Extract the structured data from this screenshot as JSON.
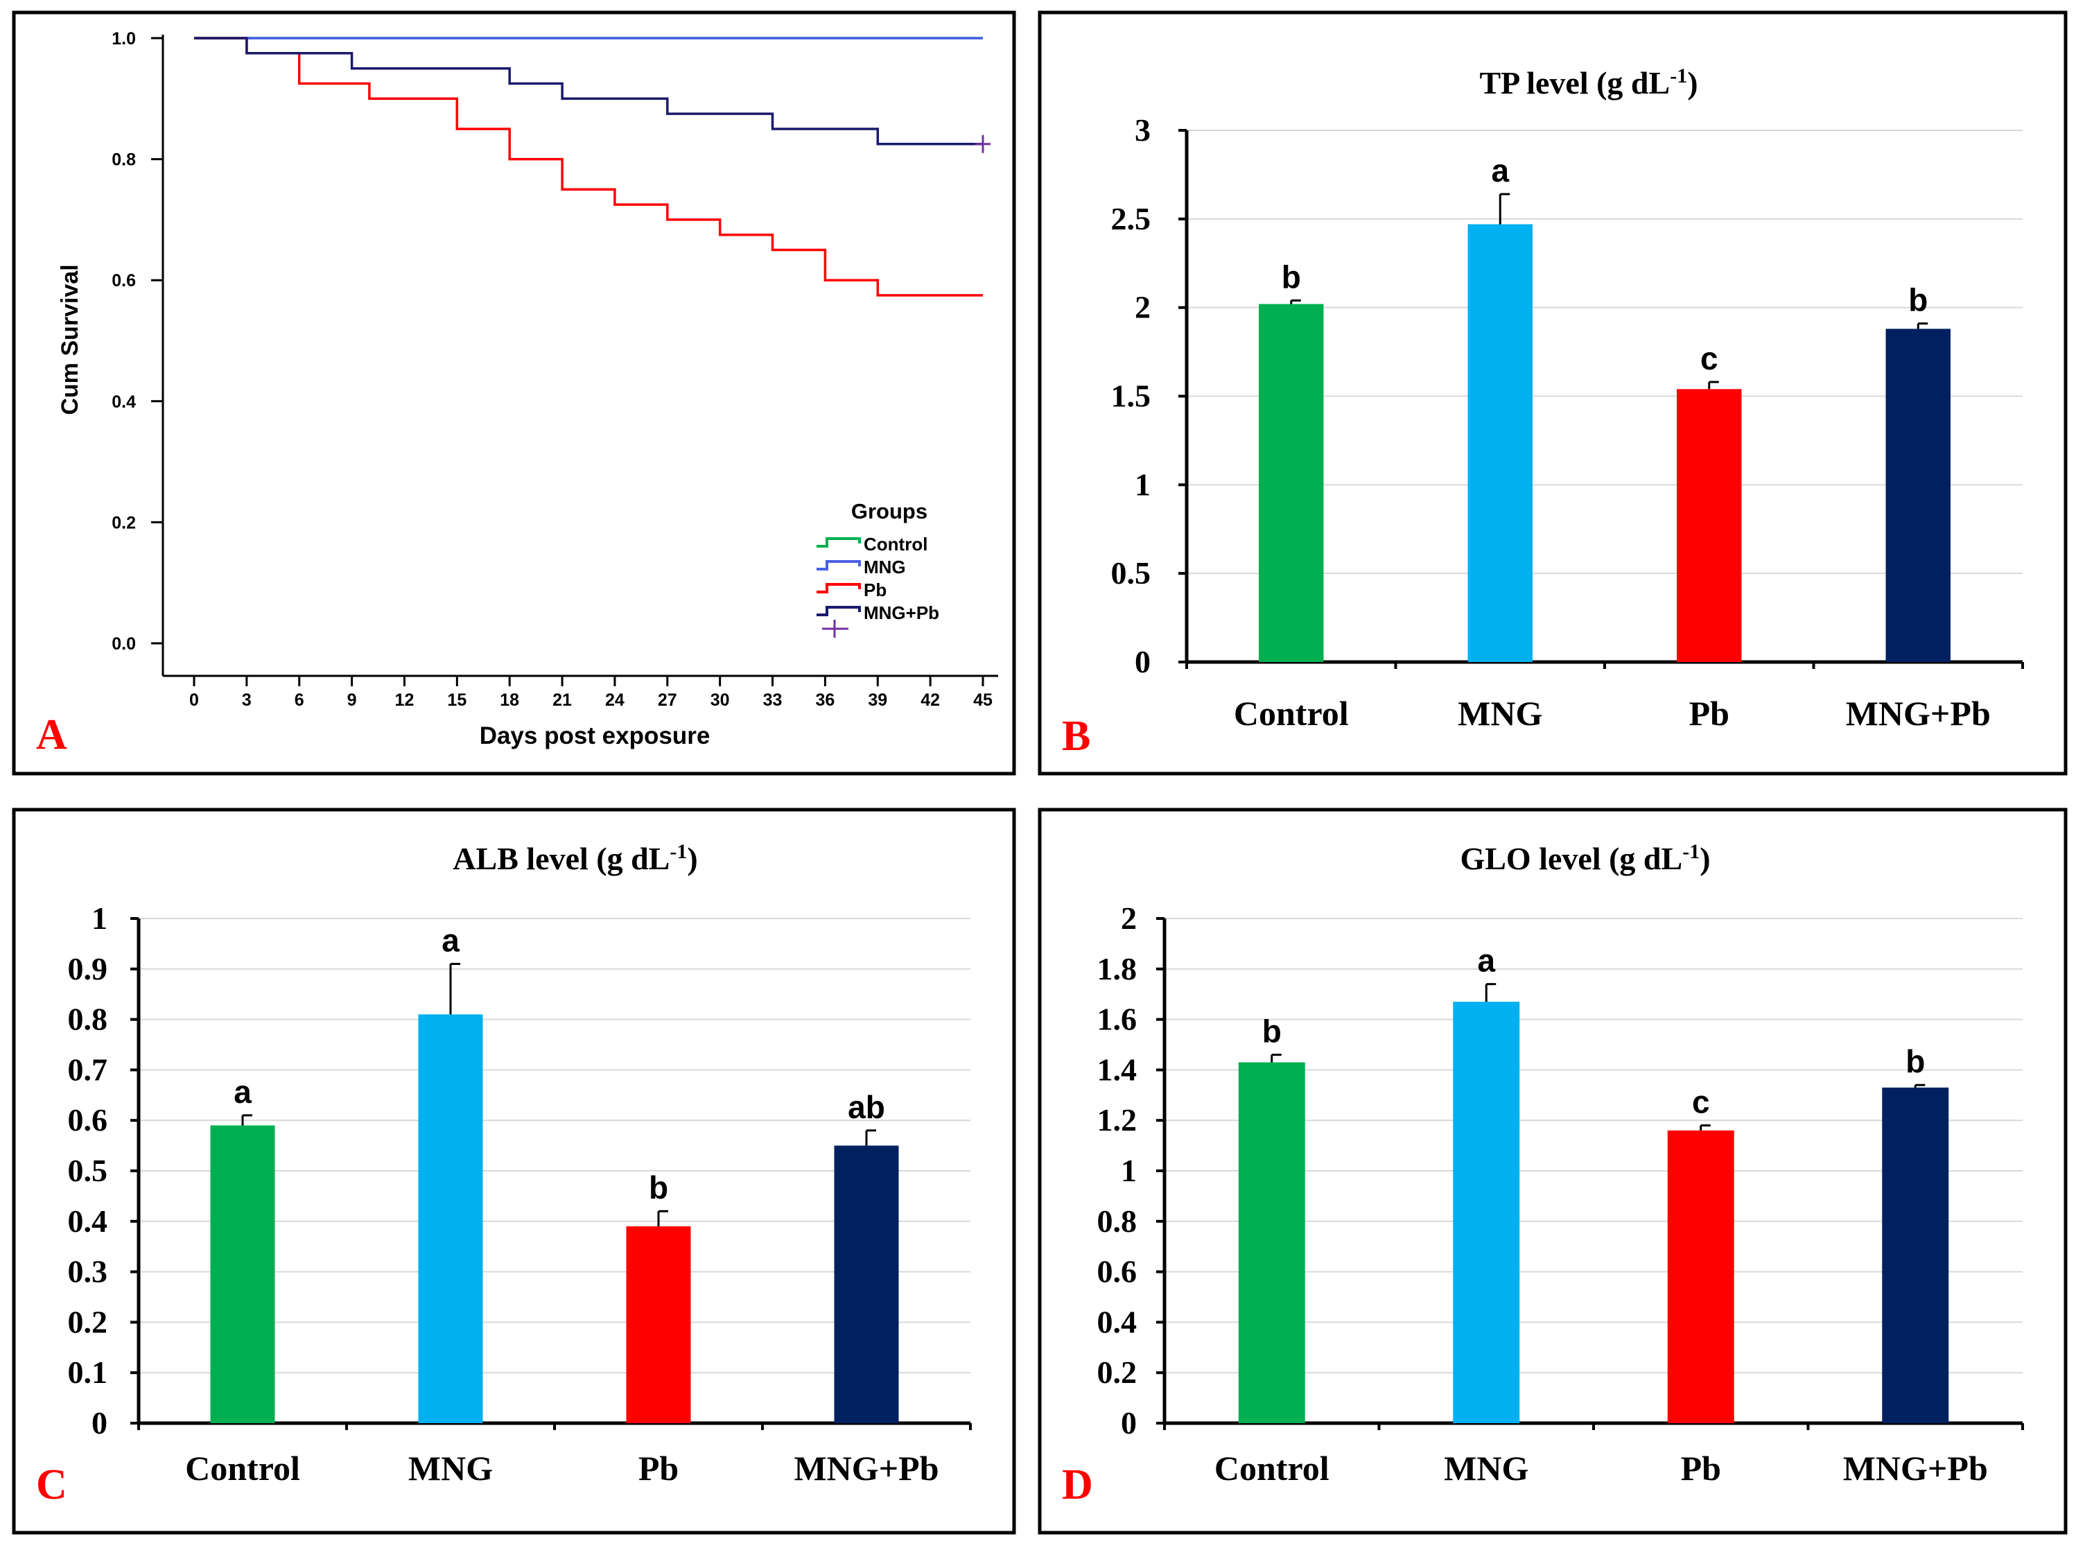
{
  "figure": {
    "colors": {
      "Control": "#00b050",
      "MNG": "#00b0f0",
      "Pb": "#ff0000",
      "MNG+Pb": "#002060",
      "frame": "#000000",
      "grid": "#d9d9d9",
      "panel_letter": "#ff0000"
    }
  },
  "chart_data": [
    {
      "panel": "A",
      "type": "line",
      "title": "",
      "xlabel": "Days post exposure",
      "ylabel": "Cum Survival",
      "xlim": [
        0,
        45
      ],
      "ylim": [
        0.0,
        1.0
      ],
      "xticks": [
        "0",
        "3",
        "6",
        "9",
        "12",
        "15",
        "18",
        "21",
        "24",
        "27",
        "30",
        "33",
        "36",
        "39",
        "42",
        "45"
      ],
      "yticks": [
        "0.0",
        "0.2",
        "0.4",
        "0.6",
        "0.8",
        "1.0"
      ],
      "legend_title": "Groups",
      "legend_position": "bottom-right",
      "legend": [
        "Control",
        "MNG",
        "Pb",
        "MNG+Pb"
      ],
      "series": [
        {
          "name": "Control",
          "color": "#00b050",
          "points": [
            [
              0,
              1.0
            ],
            [
              45,
              1.0
            ]
          ]
        },
        {
          "name": "MNG",
          "color": "#4a60e8",
          "points": [
            [
              0,
              1.0
            ],
            [
              45,
              1.0
            ]
          ]
        },
        {
          "name": "Pb",
          "color": "#ff0000",
          "points": [
            [
              0,
              1.0
            ],
            [
              3,
              1.0
            ],
            [
              3,
              0.975
            ],
            [
              6,
              0.975
            ],
            [
              6,
              0.925
            ],
            [
              10,
              0.925
            ],
            [
              10,
              0.9
            ],
            [
              12,
              0.9
            ],
            [
              12,
              0.9
            ],
            [
              15,
              0.9
            ],
            [
              15,
              0.85
            ],
            [
              18,
              0.85
            ],
            [
              18,
              0.8
            ],
            [
              21,
              0.8
            ],
            [
              21,
              0.75
            ],
            [
              24,
              0.75
            ],
            [
              24,
              0.725
            ],
            [
              27,
              0.725
            ],
            [
              27,
              0.7
            ],
            [
              30,
              0.7
            ],
            [
              30,
              0.675
            ],
            [
              33,
              0.675
            ],
            [
              33,
              0.65
            ],
            [
              36,
              0.65
            ],
            [
              36,
              0.6
            ],
            [
              39,
              0.6
            ],
            [
              39,
              0.575
            ],
            [
              45,
              0.575
            ]
          ]
        },
        {
          "name": "MNG+Pb",
          "color": "#1a1a6e",
          "points": [
            [
              0,
              1.0
            ],
            [
              3,
              1.0
            ],
            [
              3,
              0.975
            ],
            [
              9,
              0.975
            ],
            [
              9,
              0.95
            ],
            [
              18,
              0.95
            ],
            [
              18,
              0.925
            ],
            [
              21,
              0.925
            ],
            [
              21,
              0.9
            ],
            [
              27,
              0.9
            ],
            [
              27,
              0.875
            ],
            [
              33,
              0.875
            ],
            [
              33,
              0.85
            ],
            [
              39,
              0.85
            ],
            [
              39,
              0.825
            ],
            [
              45,
              0.825
            ]
          ]
        }
      ],
      "censor_marker": {
        "series": "MNG+Pb",
        "x": 45,
        "y": 0.825,
        "color": "#7030a0"
      }
    },
    {
      "panel": "B",
      "type": "bar",
      "title": "TP level  (g dL",
      "title_sup": "-1",
      "title_end": ")",
      "categories": [
        "Control",
        "MNG",
        "Pb",
        "MNG+Pb"
      ],
      "values": [
        2.02,
        2.47,
        1.54,
        1.88
      ],
      "errors": [
        0.02,
        0.17,
        0.04,
        0.03
      ],
      "letters": [
        "b",
        "a",
        "c",
        "b"
      ],
      "ylim": [
        0,
        3
      ],
      "yticks": [
        "0",
        "0.5",
        "1",
        "1.5",
        "2",
        "2.5",
        "3"
      ]
    },
    {
      "panel": "C",
      "type": "bar",
      "title": "ALB level  (g dL",
      "title_sup": "-1",
      "title_end": ")",
      "categories": [
        "Control",
        "MNG",
        "Pb",
        "MNG+Pb"
      ],
      "values": [
        0.59,
        0.81,
        0.39,
        0.55
      ],
      "errors": [
        0.02,
        0.1,
        0.03,
        0.03
      ],
      "letters": [
        "a",
        "a",
        "b",
        "ab"
      ],
      "ylim": [
        0,
        1
      ],
      "yticks": [
        "0",
        "0.1",
        "0.2",
        "0.3",
        "0.4",
        "0.5",
        "0.6",
        "0.7",
        "0.8",
        "0.9",
        "1"
      ]
    },
    {
      "panel": "D",
      "type": "bar",
      "title": "GLO level  (g dL",
      "title_sup": "-1",
      "title_end": ")",
      "categories": [
        "Control",
        "MNG",
        "Pb",
        "MNG+Pb"
      ],
      "values": [
        1.43,
        1.67,
        1.16,
        1.33
      ],
      "errors": [
        0.03,
        0.07,
        0.02,
        0.01
      ],
      "letters": [
        "b",
        "a",
        "c",
        "b"
      ],
      "ylim": [
        0,
        2
      ],
      "yticks": [
        "0",
        "0.2",
        "0.4",
        "0.6",
        "0.8",
        "1",
        "1.2",
        "1.4",
        "1.6",
        "1.8",
        "2"
      ]
    }
  ]
}
